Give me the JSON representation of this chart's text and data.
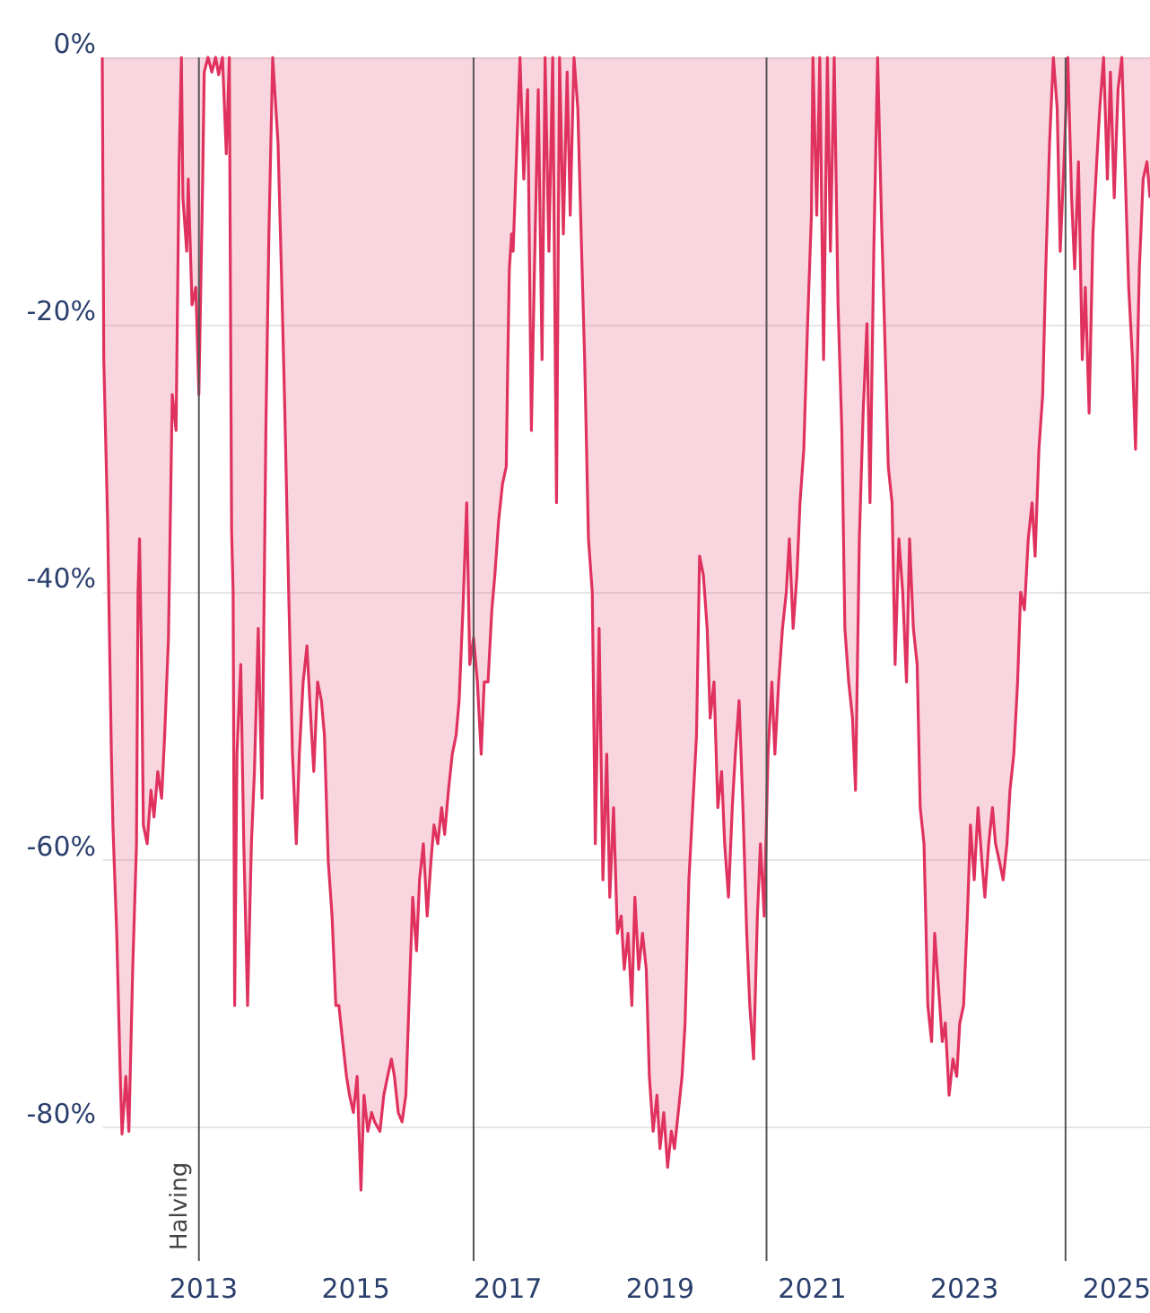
{
  "chart_data": {
    "type": "area",
    "x": [
      2011.68,
      2011.7,
      2011.75,
      2011.8,
      2011.82,
      2011.87,
      2011.92,
      2011.94,
      2011.99,
      2012.03,
      2012.08,
      2012.13,
      2012.15,
      2012.17,
      2012.2,
      2012.22,
      2012.27,
      2012.32,
      2012.36,
      2012.41,
      2012.46,
      2012.5,
      2012.55,
      2012.6,
      2012.65,
      2012.69,
      2012.72,
      2012.74,
      2012.79,
      2012.81,
      2012.86,
      2012.91,
      2012.95,
      2013.0,
      2013.02,
      2013.07,
      2013.12,
      2013.17,
      2013.21,
      2013.26,
      2013.31,
      2013.35,
      2013.38,
      2013.4,
      2013.42,
      2013.45,
      2013.5,
      2013.54,
      2013.59,
      2013.64,
      2013.68,
      2013.73,
      2013.78,
      2013.83,
      2013.87,
      2013.92,
      2013.99,
      2014.04,
      2014.08,
      2014.13,
      2014.18,
      2014.23,
      2014.27,
      2014.32,
      2014.37,
      2014.42,
      2014.46,
      2014.51,
      2014.56,
      2014.6,
      2014.65,
      2014.7,
      2014.75,
      2014.79,
      2014.84,
      2014.89,
      2014.93,
      2014.98,
      2015.03,
      2015.08,
      2015.12,
      2015.17,
      2015.22,
      2015.26,
      2015.33,
      2015.38,
      2015.43,
      2015.48,
      2015.52,
      2015.57,
      2015.62,
      2015.67,
      2015.71,
      2015.76,
      2015.81,
      2015.85,
      2015.9,
      2015.95,
      2016.0,
      2016.04,
      2016.09,
      2016.14,
      2016.18,
      2016.23,
      2016.28,
      2016.33,
      2016.37,
      2016.42,
      2016.47,
      2016.51,
      2016.56,
      2016.61,
      2016.66,
      2016.7,
      2016.75,
      2016.8,
      2016.84,
      2016.89,
      2016.94,
      2016.99,
      2017.01,
      2017.03,
      2017.06,
      2017.08,
      2017.13,
      2017.17,
      2017.22,
      2017.27,
      2017.32,
      2017.36,
      2017.41,
      2017.46,
      2017.5,
      2017.55,
      2017.6,
      2017.65,
      2017.69,
      2017.74,
      2017.79,
      2017.83,
      2017.88,
      2017.93,
      2017.98,
      2018.02,
      2018.07,
      2018.12,
      2018.16,
      2018.21,
      2018.26,
      2018.31,
      2018.35,
      2018.4,
      2018.45,
      2018.5,
      2018.54,
      2018.59,
      2018.64,
      2018.68,
      2018.73,
      2018.78,
      2018.83,
      2018.87,
      2018.92,
      2018.97,
      2019.01,
      2019.06,
      2019.11,
      2019.16,
      2019.2,
      2019.25,
      2019.3,
      2019.34,
      2019.39,
      2019.44,
      2019.49,
      2019.53,
      2019.58,
      2019.63,
      2019.67,
      2019.72,
      2019.77,
      2019.82,
      2019.86,
      2019.91,
      2019.96,
      2020.0,
      2020.05,
      2020.1,
      2020.15,
      2020.19,
      2020.24,
      2020.29,
      2020.33,
      2020.38,
      2020.43,
      2020.48,
      2020.52,
      2020.57,
      2020.62,
      2020.67,
      2020.71,
      2020.76,
      2020.81,
      2020.85,
      2020.9,
      2020.95,
      2021.0,
      2021.02,
      2021.07,
      2021.11,
      2021.16,
      2021.21,
      2021.25,
      2021.3,
      2021.35,
      2021.4,
      2021.44,
      2021.49,
      2021.54,
      2021.58,
      2021.63,
      2021.68,
      2021.73,
      2021.77,
      2021.82,
      2021.87,
      2021.92,
      2021.96,
      2022.01,
      2022.06,
      2022.1,
      2022.15,
      2022.2,
      2022.25,
      2022.29,
      2022.34,
      2022.39,
      2022.43,
      2022.48,
      2022.53,
      2022.58,
      2022.62,
      2022.67,
      2022.72,
      2022.76,
      2022.81,
      2022.86,
      2022.91,
      2022.95,
      2023.0,
      2023.05,
      2023.09,
      2023.14,
      2023.19,
      2023.24,
      2023.28,
      2023.33,
      2023.38,
      2023.42,
      2023.47,
      2023.52,
      2023.57,
      2023.61,
      2023.66,
      2023.71,
      2023.75,
      2023.8,
      2023.85,
      2023.9,
      2023.94,
      2023.99,
      2024.04,
      2024.08,
      2024.13,
      2024.18,
      2024.23,
      2024.27,
      2024.32,
      2024.37,
      2024.42,
      2024.46,
      2024.51,
      2024.56,
      2024.6,
      2024.65,
      2024.7,
      2024.75,
      2024.79,
      2024.84,
      2024.89,
      2024.93,
      2024.98,
      2025.03,
      2025.08,
      2025.12,
      2025.17,
      2025.22,
      2025.26,
      2025.31,
      2025.36,
      2025.41,
      2025.45
    ],
    "series": [
      {
        "color": "#e0325e",
        "values": [
          0,
          -22.6,
          -34.6,
          -52.1,
          -57.4,
          -65.5,
          -76.9,
          -80.5,
          -76.2,
          -80.3,
          -68.2,
          -58.8,
          -40,
          -36,
          -46.7,
          -57.4,
          -58.8,
          -54.8,
          -56.8,
          -53.4,
          -55.4,
          -50.7,
          -43.4,
          -25.2,
          -27.9,
          -7.8,
          0,
          -10.5,
          -14.5,
          -9.1,
          -18.5,
          -17.2,
          -25.2,
          -9.1,
          -1.1,
          0,
          -1.1,
          0,
          -1.3,
          0,
          -7.2,
          0,
          -35.4,
          -40,
          -70.9,
          -52.1,
          -45.4,
          -58.8,
          -70.9,
          -58.8,
          -53.4,
          -42.7,
          -55.4,
          -27.9,
          -13.2,
          0,
          -6.4,
          -17.2,
          -26.6,
          -40,
          -52.1,
          -58.8,
          -52.1,
          -46.7,
          -44,
          -49.4,
          -53.4,
          -46.7,
          -48.1,
          -50.7,
          -60.1,
          -64.2,
          -70.9,
          -70.9,
          -73.6,
          -76.2,
          -77.6,
          -78.9,
          -76.2,
          -84.7,
          -77.6,
          -80.3,
          -78.9,
          -79.6,
          -80.3,
          -77.6,
          -76.2,
          -74.9,
          -76.2,
          -78.9,
          -79.6,
          -77.6,
          -70.9,
          -62.8,
          -66.8,
          -61.5,
          -58.8,
          -64.2,
          -60.1,
          -57.4,
          -58.8,
          -56.1,
          -58.1,
          -54.8,
          -52.1,
          -50.7,
          -48.1,
          -41.3,
          -33.3,
          -45.4,
          -43.4,
          -46.7,
          -52.1,
          -46.7,
          -46.7,
          -41.3,
          -38.7,
          -34.6,
          -31.9,
          -30.6,
          -22.6,
          -15.8,
          -13.2,
          -14.5,
          -6.4,
          0,
          -9.1,
          -2.4,
          -27.9,
          -15.8,
          -2.4,
          -22.6,
          0,
          -14.5,
          0,
          -33.3,
          0,
          -13.2,
          -1.1,
          -11.8,
          0,
          -3.8,
          -14.5,
          -22.6,
          -36,
          -40,
          -58.8,
          -42.7,
          -61.5,
          -52.1,
          -62.8,
          -56.1,
          -65.5,
          -64.2,
          -68.2,
          -65.5,
          -70.9,
          -62.8,
          -68.2,
          -65.5,
          -68.2,
          -76.2,
          -80.3,
          -77.6,
          -81.6,
          -78.9,
          -83,
          -80.3,
          -81.6,
          -78.9,
          -76.2,
          -72.2,
          -61.5,
          -56.1,
          -50.7,
          -37.3,
          -38.7,
          -42.7,
          -49.4,
          -46.7,
          -56.1,
          -53.4,
          -58.8,
          -62.8,
          -56.1,
          -52.1,
          -48.1,
          -56.1,
          -65.5,
          -70.9,
          -74.9,
          -64.2,
          -58.8,
          -64.2,
          -52.1,
          -46.7,
          -52.1,
          -46.7,
          -42.7,
          -40,
          -36,
          -42.7,
          -38.7,
          -33.3,
          -29.3,
          -19.9,
          -11.8,
          0,
          -11.8,
          0,
          -22.6,
          0,
          -14.5,
          0,
          -18.5,
          -27.9,
          -42.7,
          -46.7,
          -49.4,
          -54.8,
          -36,
          -26.6,
          -19.9,
          -33.3,
          -14.5,
          0,
          -11.8,
          -19.9,
          -30.6,
          -33.3,
          -45.4,
          -36,
          -40,
          -46.7,
          -36,
          -42.7,
          -45.4,
          -56.1,
          -58.8,
          -70.9,
          -73.6,
          -65.5,
          -69.5,
          -73.6,
          -72.2,
          -77.6,
          -74.9,
          -76.2,
          -72.2,
          -70.9,
          -64.2,
          -57.4,
          -61.5,
          -56.1,
          -60.1,
          -62.8,
          -58.8,
          -56.1,
          -58.8,
          -60.1,
          -61.5,
          -58.8,
          -54.8,
          -52.1,
          -46.7,
          -40,
          -41.3,
          -36,
          -33.3,
          -37.3,
          -29.3,
          -25.2,
          -15.8,
          -6.4,
          0,
          -3.8,
          -14.5,
          -7.8,
          0,
          -10.5,
          -15.8,
          -7.8,
          -22.6,
          -17.2,
          -26.6,
          -13.2,
          -7.8,
          -3.8,
          0,
          -9.1,
          -1.1,
          -10.5,
          -2.4,
          0,
          -7.8,
          -17.2,
          -22.6,
          -29.3,
          -15.8,
          -9.1,
          -7.8,
          -10.5
        ]
      }
    ],
    "xlim": [
      2011.68,
      2025.45
    ],
    "xticks": [
      2013,
      2015,
      2017,
      2019,
      2021,
      2023,
      2025
    ],
    "ylim": [
      -90,
      0
    ],
    "yticks": [
      {
        "value": 0,
        "label": "0%"
      },
      {
        "value": -20,
        "label": "-20%"
      },
      {
        "value": -40,
        "label": "-40%"
      },
      {
        "value": -60,
        "label": "-60%"
      },
      {
        "value": -80,
        "label": "-80%"
      }
    ],
    "grid": "y",
    "ref_lines": [
      {
        "axis": "x",
        "value": 2012.95,
        "label": "Halving",
        "color": "#555555"
      },
      {
        "axis": "x",
        "value": 2016.56,
        "label": null,
        "color": "#555555"
      },
      {
        "axis": "x",
        "value": 2020.41,
        "label": null,
        "color": "#555555"
      },
      {
        "axis": "x",
        "value": 2024.34,
        "label": null,
        "color": "#555555"
      }
    ]
  }
}
